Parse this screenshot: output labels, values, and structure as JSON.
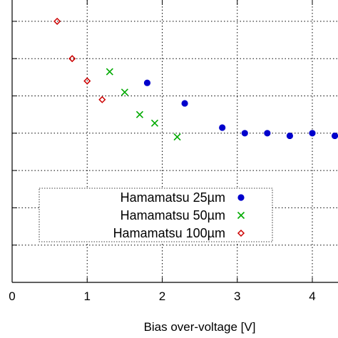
{
  "chart_data": {
    "type": "scatter",
    "title": "",
    "xlabel": "Bias over-voltage [V]",
    "ylabel": "",
    "xlim": [
      0,
      4.3
    ],
    "ylim": [
      0,
      7.5
    ],
    "x_ticks": [
      0,
      1,
      2,
      3,
      4
    ],
    "x_tick_labels": [
      "0",
      "1",
      "2",
      "3",
      "4"
    ],
    "y_ticks": [
      1,
      2,
      3,
      4,
      5,
      6,
      7
    ],
    "grid": true,
    "grid_style": "dotted",
    "legend_position": "lower-left",
    "series": [
      {
        "name": "Hamamatsu 25µm",
        "marker": "filled-circle",
        "color": "#0000cc",
        "x": [
          1.8,
          2.3,
          2.8,
          3.1,
          3.4,
          3.7,
          4.0,
          4.3
        ],
        "y": [
          5.35,
          4.8,
          4.15,
          4.0,
          4.0,
          3.93,
          4.0,
          3.93
        ]
      },
      {
        "name": "Hamamatsu 50µm",
        "marker": "x",
        "color": "#00aa00",
        "x": [
          1.3,
          1.5,
          1.7,
          1.9,
          2.2
        ],
        "y": [
          5.65,
          5.1,
          4.5,
          4.27,
          3.9
        ]
      },
      {
        "name": "Hamamatsu 100µm",
        "marker": "open-diamond",
        "color": "#cc0000",
        "x": [
          0.6,
          0.8,
          1.0,
          1.2
        ],
        "y": [
          7.0,
          6.0,
          5.4,
          4.9
        ]
      }
    ]
  }
}
